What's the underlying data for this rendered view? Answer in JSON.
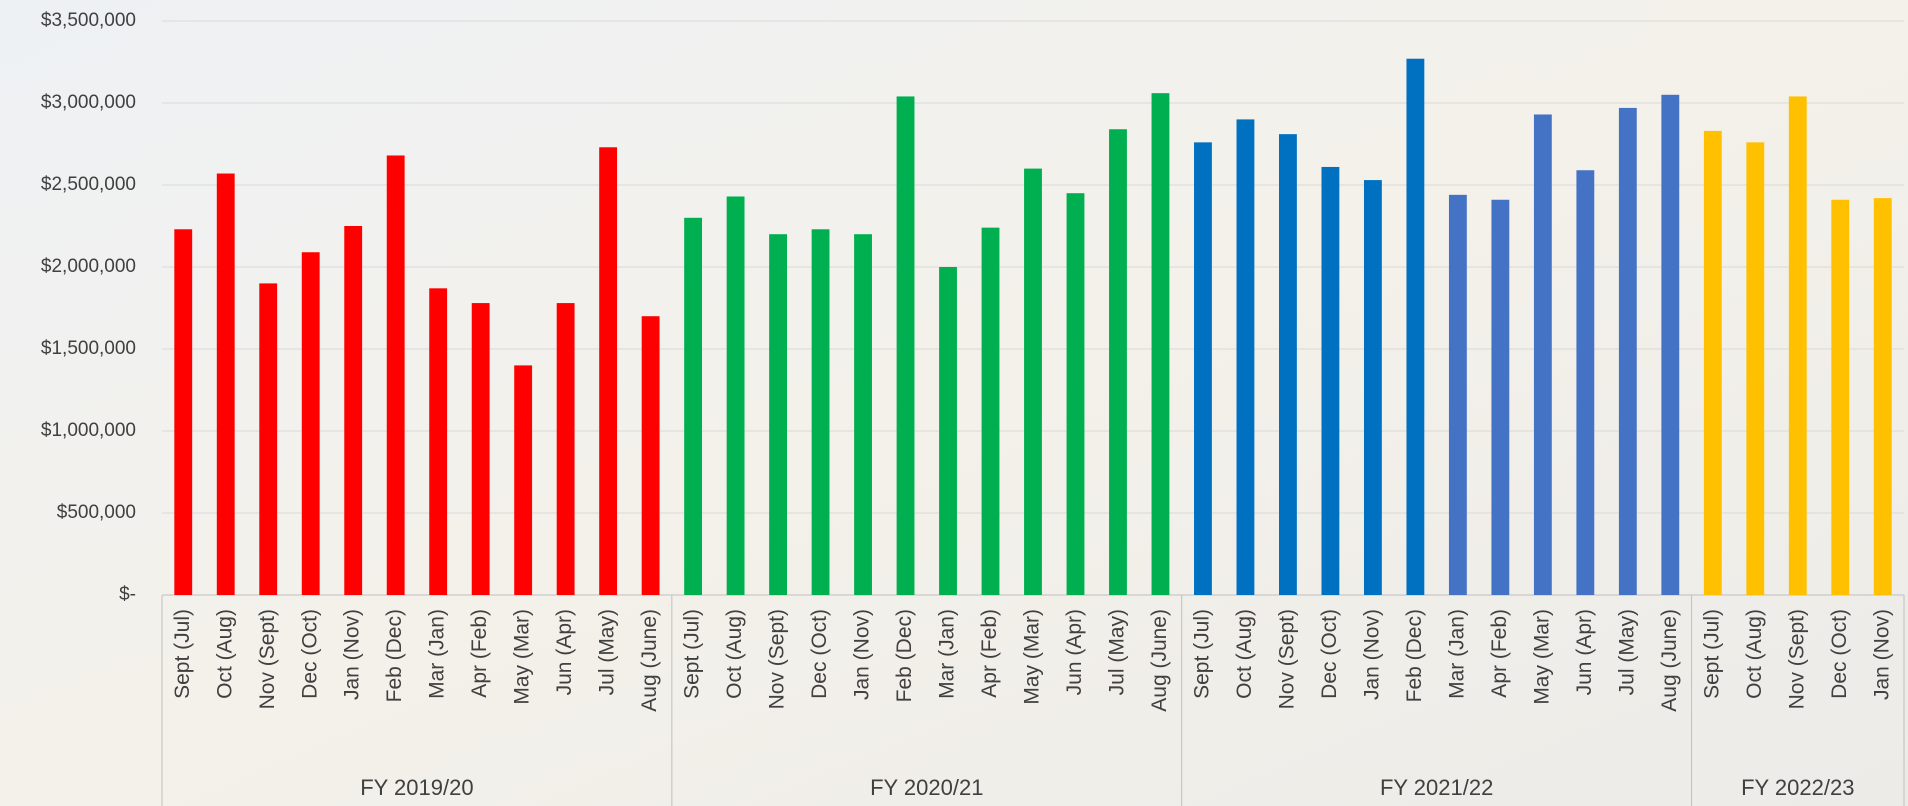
{
  "chart_data": {
    "type": "bar",
    "ylim": [
      0,
      3500000
    ],
    "yticks": [
      {
        "value": 0,
        "label": "$-"
      },
      {
        "value": 500000,
        "label": "$500,000"
      },
      {
        "value": 1000000,
        "label": "$1,000,000"
      },
      {
        "value": 1500000,
        "label": "$1,500,000"
      },
      {
        "value": 2000000,
        "label": "$2,000,000"
      },
      {
        "value": 2500000,
        "label": "$2,500,000"
      },
      {
        "value": 3000000,
        "label": "$3,000,000"
      },
      {
        "value": 3500000,
        "label": "$3,500,000"
      }
    ],
    "grid": true,
    "groups": [
      {
        "name": "FY 2019/20",
        "color": "#ff0000",
        "categories": [
          "Sept (Jul)",
          "Oct (Aug)",
          "Nov (Sept)",
          "Dec (Oct)",
          "Jan (Nov)",
          "Feb (Dec)",
          "Mar (Jan)",
          "Apr (Feb)",
          "May (Mar)",
          "Jun (Apr)",
          "Jul (May)",
          "Aug (June)"
        ],
        "values": [
          2230000,
          2570000,
          1900000,
          2090000,
          2250000,
          2680000,
          1870000,
          1780000,
          1400000,
          1780000,
          2730000,
          1700000
        ]
      },
      {
        "name": "FY 2020/21",
        "color": "#00b050",
        "categories": [
          "Sept (Jul)",
          "Oct (Aug)",
          "Nov (Sept)",
          "Dec (Oct)",
          "Jan (Nov)",
          "Feb (Dec)",
          "Mar (Jan)",
          "Apr (Feb)",
          "May (Mar)",
          "Jun (Apr)",
          "Jul (May)",
          "Aug (June)"
        ],
        "values": [
          2300000,
          2430000,
          2200000,
          2230000,
          2200000,
          3040000,
          2000000,
          2240000,
          2600000,
          2450000,
          2840000,
          3060000
        ]
      },
      {
        "name": "FY 2021/22",
        "colors": [
          "#0070c0",
          "#0070c0",
          "#0070c0",
          "#0070c0",
          "#0070c0",
          "#0070c0",
          "#4472c4",
          "#4472c4",
          "#4472c4",
          "#4472c4",
          "#4472c4",
          "#4472c4"
        ],
        "categories": [
          "Sept (Jul)",
          "Oct (Aug)",
          "Nov (Sept)",
          "Dec (Oct)",
          "Jan (Nov)",
          "Feb (Dec)",
          "Mar (Jan)",
          "Apr (Feb)",
          "May (Mar)",
          "Jun (Apr)",
          "Jul (May)",
          "Aug (June)"
        ],
        "values": [
          2760000,
          2900000,
          2810000,
          2610000,
          2530000,
          3270000,
          2440000,
          2410000,
          2930000,
          2590000,
          2970000,
          3050000
        ]
      },
      {
        "name": "FY 2022/23",
        "color": "#ffc000",
        "categories": [
          "Sept (Jul)",
          "Oct (Aug)",
          "Nov (Sept)",
          "Dec (Oct)",
          "Jan (Nov)"
        ],
        "values": [
          2830000,
          2760000,
          3040000,
          2410000,
          2420000
        ]
      }
    ]
  }
}
